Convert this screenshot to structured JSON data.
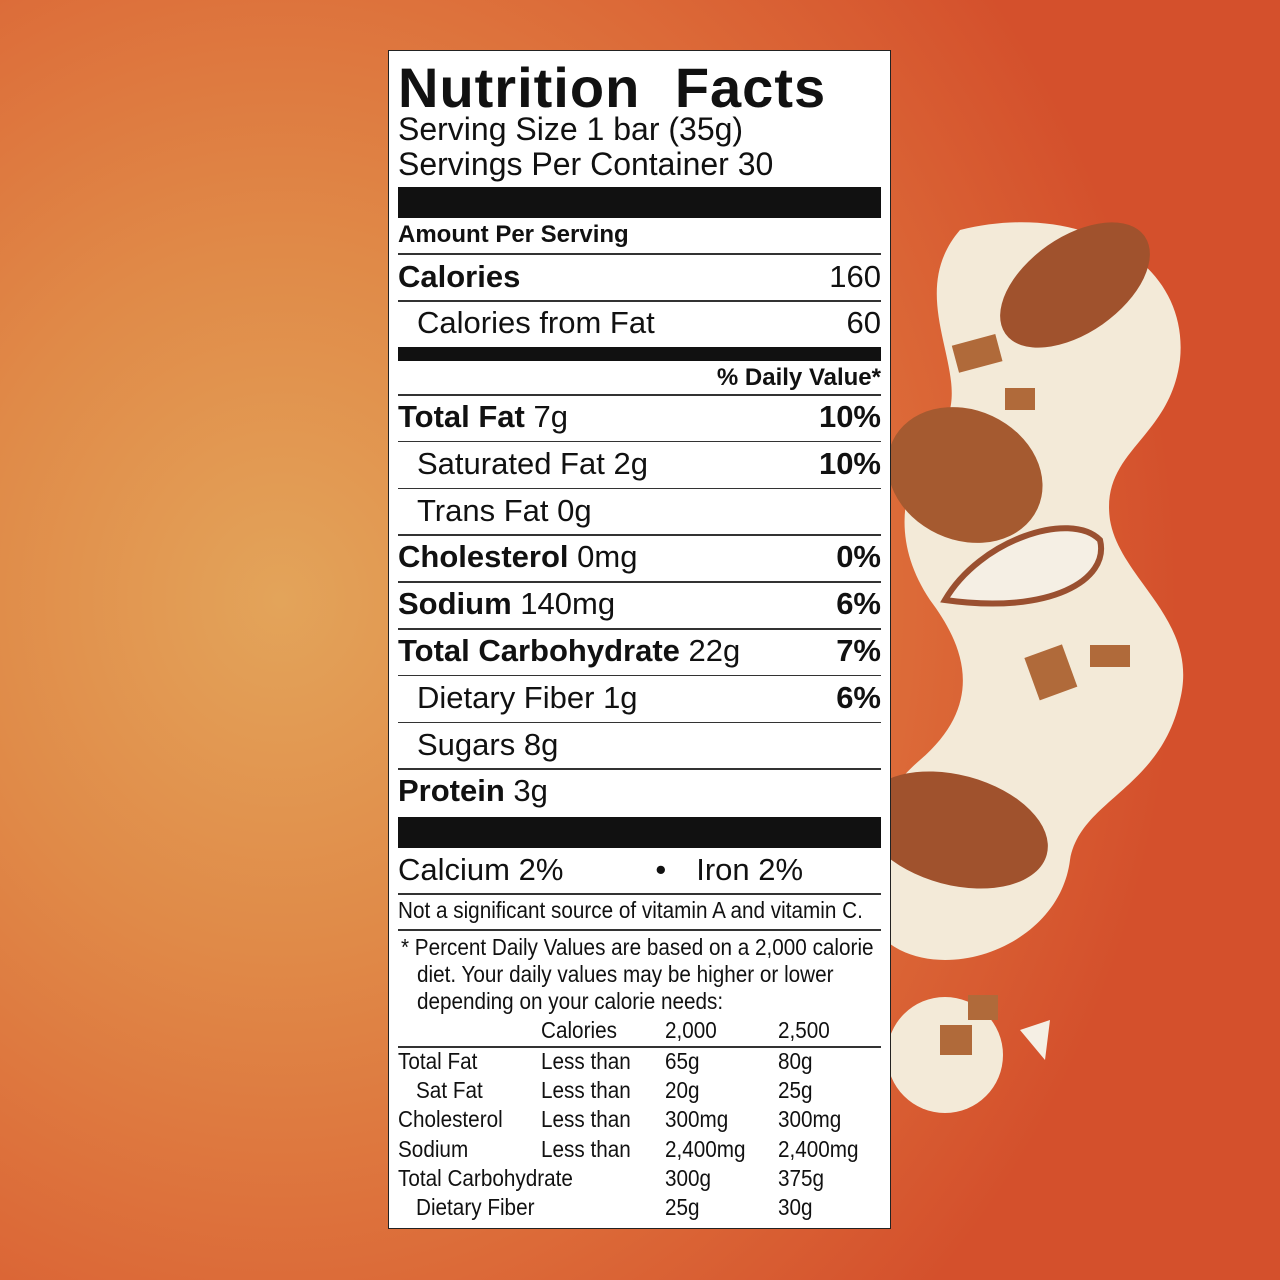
{
  "label": {
    "title": "Nutrition Facts",
    "serving_size": "Serving Size 1 bar (35g)",
    "servings_per_container": "Servings Per Container 30",
    "amount_per_serving": "Amount Per Serving",
    "calories_label": "Calories",
    "calories_value": "160",
    "calories_fat_label": "Calories from Fat",
    "calories_fat_value": "60",
    "daily_value_header": "% Daily Value*",
    "nutrients": [
      {
        "name": "Total Fat",
        "amount": "7g",
        "dv": "10%",
        "bold": true
      },
      {
        "name": "Saturated Fat",
        "amount": "2g",
        "dv": "10%",
        "bold": false
      },
      {
        "name": "Trans Fat",
        "amount": "0g",
        "dv": "",
        "bold": false
      },
      {
        "name": "Cholesterol",
        "amount": "0mg",
        "dv": "0%",
        "bold": true
      },
      {
        "name": "Sodium",
        "amount": "140mg",
        "dv": "6%",
        "bold": true
      },
      {
        "name": "Total Carbohydrate",
        "amount": "22g",
        "dv": "7%",
        "bold": true
      },
      {
        "name": "Dietary Fiber",
        "amount": "1g",
        "dv": "6%",
        "bold": false
      },
      {
        "name": "Sugars",
        "amount": "8g",
        "dv": "",
        "bold": false
      },
      {
        "name": "Protein",
        "amount": "3g",
        "dv": "",
        "bold": true
      }
    ],
    "calcium": "Calcium 2%",
    "iron": "Iron 2%",
    "bullet": "•",
    "vitamin_note": "Not a significant source of vitamin A and vitamin C.",
    "footnote": [
      "* Percent Daily Values are based on a 2,000 calorie",
      "diet. Your daily values may be higher or lower",
      "depending on your calorie needs:"
    ],
    "table_header": [
      "",
      "Calories",
      "2,000",
      "2,500"
    ],
    "table_rows": [
      [
        "Total Fat",
        "Less than",
        "65g",
        "80g"
      ],
      [
        "Sat Fat",
        "Less than",
        "20g",
        "25g"
      ],
      [
        "Cholesterol",
        "Less than",
        "300mg",
        "300mg"
      ],
      [
        "Sodium",
        "Less than",
        "2,400mg",
        "2,400mg"
      ],
      [
        "Total Carbohydrate",
        "",
        "300g",
        "375g"
      ],
      [
        "Dietary Fiber",
        "",
        "25g",
        "30g"
      ]
    ]
  },
  "colors": {
    "background": "#df8a48",
    "cream": "#f3ead8",
    "almond": "#a0522d"
  }
}
